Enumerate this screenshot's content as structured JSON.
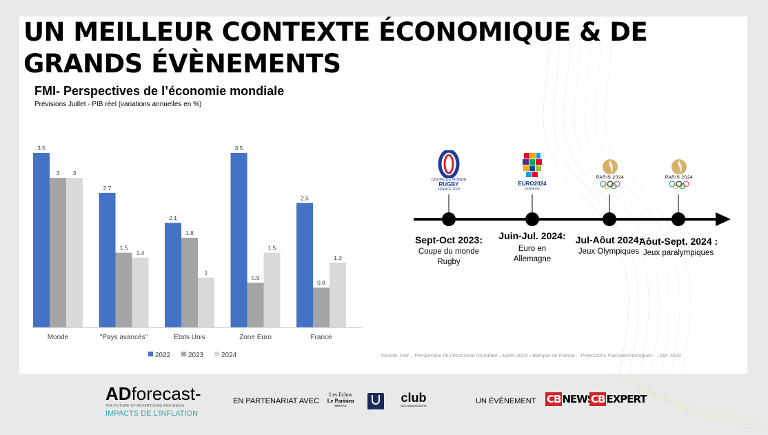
{
  "page": {
    "title": "UN MEILLEUR CONTEXTE ÉCONOMIQUE & DE GRANDS ÉVÈNEMENTS"
  },
  "chart_data": {
    "type": "bar",
    "title": "FMI- Perspectives de l’économie mondiale",
    "subtitle": "Prévisions Juillet - PIB réel (variations annuelles en %)",
    "categories": [
      "Monde",
      "\"Pays avancés\"",
      "Etats Unis",
      "Zone Euro",
      "France"
    ],
    "series": [
      {
        "name": "2022",
        "color": "#4472c4",
        "values": [
          3.5,
          2.7,
          2.1,
          3.5,
          2.5
        ]
      },
      {
        "name": "2023",
        "color": "#a5a5a5",
        "values": [
          3,
          1.5,
          1.8,
          0.9,
          0.8
        ]
      },
      {
        "name": "2024",
        "color": "#d9d9d9",
        "values": [
          3,
          1.4,
          1,
          1.5,
          1.3
        ]
      }
    ],
    "ylim": [
      0,
      3.5
    ],
    "xlabel": "",
    "ylabel": "",
    "grid": false,
    "legend": "bottom",
    "data_labels": true
  },
  "timeline": {
    "events": [
      {
        "date": "Sept-Oct 2023:",
        "description": "Coupe du monde Rugby",
        "logo_icon": "rugby-world-cup-2023-logo"
      },
      {
        "date": "Juin-Jul. 2024:",
        "description": "Euro en Allemagne",
        "logo_icon": "euro-2024-logo"
      },
      {
        "date": "Jul-Aôut 2024:",
        "description": "Jeux Olympiques",
        "logo_icon": "paris-2024-olympics-logo"
      },
      {
        "date": "Aôut-Sept. 2024 :",
        "description": "Jeux paralympiques",
        "logo_icon": "paris-2024-paralympics-logo"
      }
    ]
  },
  "logos": {
    "rugby": {
      "line1": "COUPE DU MONDE",
      "line2": "RUGBY",
      "line3": "FRANCE 2023"
    },
    "euro": {
      "line1": "EURO2024",
      "line2": "GERMANY"
    },
    "paris_olympics": {
      "text": "PARIS 2024"
    },
    "paris_paralympics": {
      "text": "PARIS 2024"
    }
  },
  "source": "Source:  FMI – Perspective de l’économie mondiale –Juillet 2023 - Banque de France – Projections macroéconomiques – Juin 2023",
  "footer": {
    "brand": {
      "ad": "AD",
      "forecast": "forecast-",
      "tagline": "THE FUTURE OF ADVERTISING AND MEDIA",
      "event": "IMPACTS DE L’INFLATION"
    },
    "partners_label": "EN PARTENARIAT AVEC",
    "partners": {
      "lesechos_line1": "Les Echos",
      "lesechos_line2": "Le Parisien",
      "lesechos_line3": "MÉDIAS",
      "udecam": "UDECAM",
      "club_main": "club",
      "club_sub": "DES ANNONCEURS"
    },
    "event_label": "UN ÉVÉNEMENT",
    "organizers": {
      "cb_badge": "CB",
      "news": "NEWS",
      "expert": "EXPERT"
    }
  },
  "colors": {
    "accent_gold": "#c9a15a",
    "timeline": "#000000",
    "footer_teal": "#3aa7b0"
  }
}
